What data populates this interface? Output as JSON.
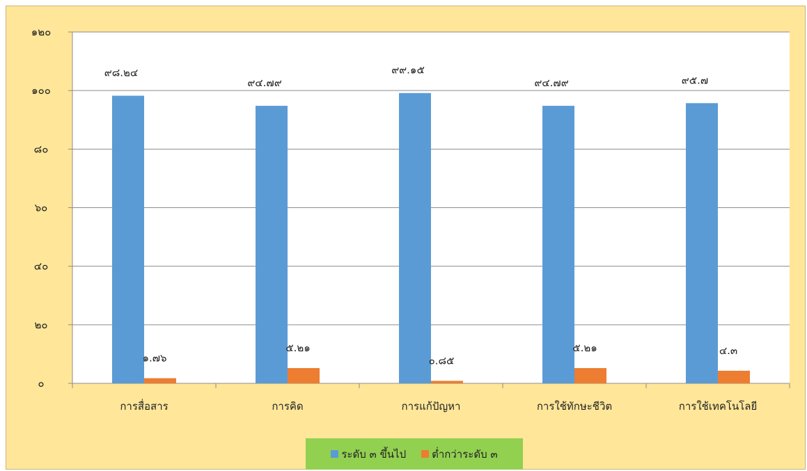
{
  "chart_data": {
    "type": "bar",
    "categories": [
      "การสื่อสาร",
      "การคิด",
      "การแก้ปัญหา",
      "การใช้ทักษะชีวิต",
      "การใช้เทคโนโลยี"
    ],
    "series": [
      {
        "name": "ระดับ ๓ ขึ้นไป",
        "color": "#5b9bd5",
        "values": [
          98.24,
          94.79,
          99.15,
          94.79,
          95.7
        ],
        "labels": [
          "๙๘.๒๔",
          "๙๔.๗๙",
          "๙๙.๑๕",
          "๙๔.๗๙",
          "๙๕.๗"
        ]
      },
      {
        "name": "ต่ำกว่าระดับ ๓",
        "color": "#ed7d31",
        "values": [
          1.76,
          5.21,
          0.85,
          5.21,
          4.3
        ],
        "labels": [
          "๑.๗๖",
          "๕.๒๑",
          "๐.๘๕",
          "๕.๒๑",
          "๔.๓"
        ]
      }
    ],
    "ylim": [
      0,
      120
    ],
    "yticks": [
      0,
      20,
      40,
      60,
      80,
      100,
      120
    ],
    "ytick_labels": [
      "๐",
      "๒๐",
      "๔๐",
      "๖๐",
      "๘๐",
      "๑๐๐",
      "๑๒๐"
    ],
    "grid": true,
    "legend_position": "bottom",
    "background": "#ffe699",
    "legend_background": "#92d050"
  }
}
